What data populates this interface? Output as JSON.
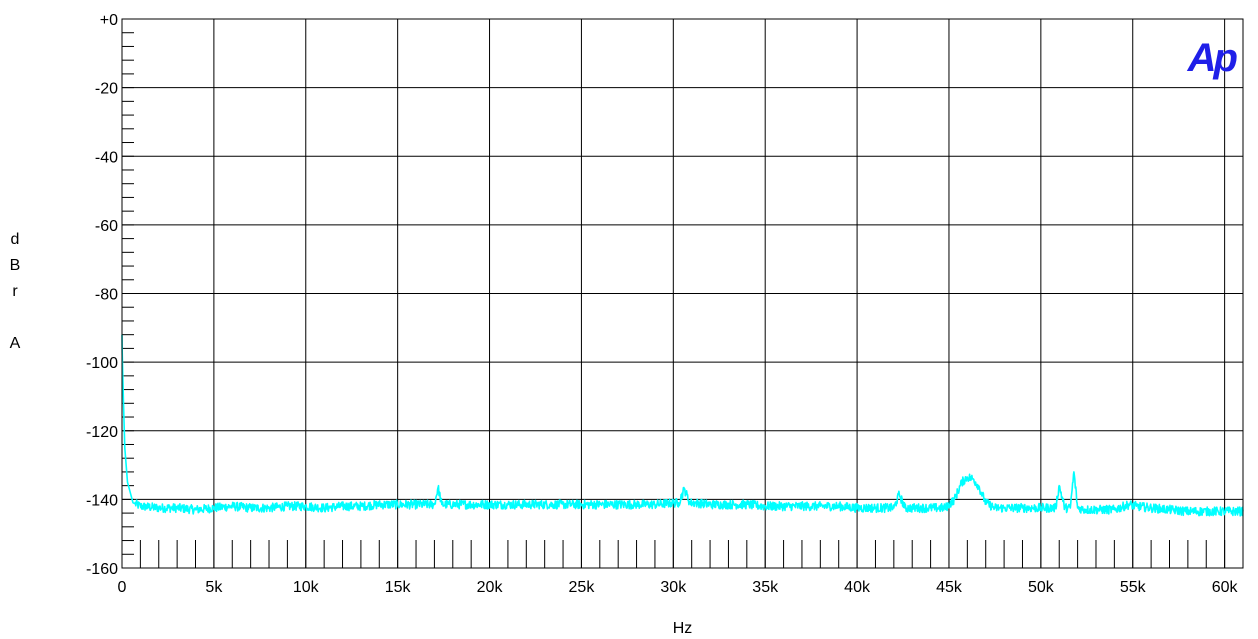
{
  "chart_data": {
    "type": "line",
    "xlabel": "Hz",
    "ylabel": "dBr A",
    "xlim": [
      0,
      61000
    ],
    "ylim": [
      -160,
      0
    ],
    "grid": true,
    "x_ticks": [
      0,
      5000,
      10000,
      15000,
      20000,
      25000,
      30000,
      35000,
      40000,
      45000,
      50000,
      55000,
      60000
    ],
    "x_tick_labels": [
      "0",
      "5k",
      "10k",
      "15k",
      "20k",
      "25k",
      "30k",
      "35k",
      "40k",
      "45k",
      "50k",
      "55k",
      "60k"
    ],
    "y_ticks": [
      0,
      -20,
      -40,
      -60,
      -80,
      -100,
      -120,
      -140,
      -160
    ],
    "y_tick_labels": [
      "+0",
      "-20",
      "-40",
      "-60",
      "-80",
      "-100",
      "-120",
      "-140",
      "-160"
    ],
    "series": [
      {
        "color": "#00ffff",
        "x": [
          0,
          10,
          40,
          80,
          150,
          300,
          600,
          1000,
          2000,
          3000,
          4000,
          5000,
          6000,
          7000,
          8000,
          9000,
          10000,
          11000,
          12000,
          13000,
          14000,
          15000,
          16000,
          17000,
          17200,
          17400,
          18000,
          19000,
          20000,
          21000,
          22000,
          23000,
          24000,
          25000,
          26000,
          27000,
          28000,
          29000,
          30000,
          30300,
          30600,
          30900,
          31200,
          32000,
          33000,
          34000,
          35000,
          36000,
          37000,
          38000,
          39000,
          40000,
          41000,
          42000,
          42300,
          42600,
          43000,
          44000,
          44800,
          45300,
          45700,
          46000,
          46300,
          46600,
          47000,
          47500,
          48000,
          49000,
          50000,
          50800,
          51000,
          51300,
          51600,
          51800,
          52000,
          52400,
          53000,
          54000,
          54800,
          55200,
          56000,
          57000,
          58000,
          59000,
          60000,
          61000
        ],
        "y": [
          -92,
          -97,
          -103,
          -112,
          -125,
          -135,
          -141,
          -142,
          -142.5,
          -142.5,
          -143,
          -142.5,
          -142,
          -142.5,
          -142.5,
          -142,
          -142,
          -142.5,
          -142,
          -142,
          -141.5,
          -141.5,
          -141.5,
          -141.5,
          -136.5,
          -141.5,
          -141.5,
          -141.5,
          -141.5,
          -141.5,
          -141.5,
          -141.5,
          -141.5,
          -141.5,
          -141.5,
          -141.5,
          -141.5,
          -141.5,
          -141,
          -141,
          -137,
          -141,
          -141,
          -141.5,
          -141.5,
          -141.5,
          -142,
          -142,
          -142,
          -142,
          -142,
          -142.5,
          -142.5,
          -142.5,
          -138.5,
          -142.5,
          -142.5,
          -142.5,
          -142.5,
          -140,
          -135,
          -133.5,
          -134,
          -136,
          -141,
          -142.5,
          -142.5,
          -142.5,
          -142.5,
          -142.5,
          -136,
          -142.5,
          -142.5,
          -132,
          -142.5,
          -143,
          -143,
          -143,
          -141.5,
          -142,
          -142.5,
          -143,
          -143.5,
          -143.5,
          -143.5,
          -143.5
        ]
      }
    ]
  },
  "logo": {
    "text": "Ap",
    "color": "#1f1fe8"
  }
}
